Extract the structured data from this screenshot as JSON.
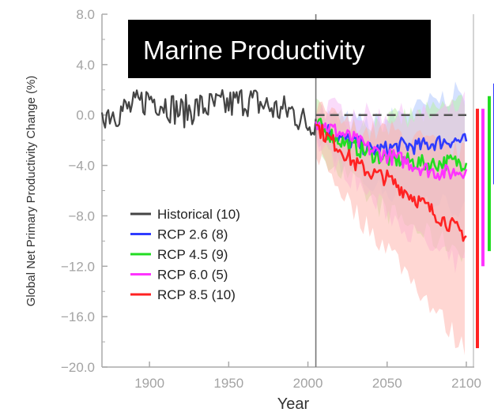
{
  "chart_data": {
    "type": "line",
    "title": "Marine Productivity",
    "xlabel": "Year",
    "ylabel": "Global Net Primary Productivity Change (%)",
    "xlim": [
      1870,
      2100
    ],
    "ylim": [
      -20,
      8
    ],
    "x_ticks": [
      "1900",
      "1950",
      "2000",
      "2050",
      "2100"
    ],
    "x_tick_values": [
      1900,
      1950,
      2000,
      2050,
      2100
    ],
    "y_ticks": [
      "8.0",
      "4.0",
      "0.0",
      "−4.0",
      "−8.0",
      "−12.0",
      "−16.0",
      "−20.0"
    ],
    "y_tick_values": [
      8,
      4,
      0,
      -4,
      -8,
      -12,
      -16,
      -20
    ],
    "divider_year": 2005,
    "zero_reference_dashed": true,
    "legend_position": "lower-left",
    "series": [
      {
        "name": "Historical (10)",
        "color": "#444444",
        "x": [
          1870,
          1880,
          1890,
          1900,
          1910,
          1920,
          1930,
          1940,
          1950,
          1960,
          1970,
          1980,
          1990,
          2000,
          2005
        ],
        "y": [
          0.2,
          0.3,
          0.6,
          1.4,
          0.9,
          0.2,
          0.6,
          0.7,
          0.8,
          1.2,
          0.9,
          0.4,
          0.3,
          -0.8,
          -0.3
        ]
      },
      {
        "name": "RCP 2.6 (8)",
        "color": "#2f3cff",
        "x": [
          2005,
          2010,
          2020,
          2030,
          2040,
          2050,
          2060,
          2070,
          2080,
          2090,
          2100
        ],
        "y": [
          -0.5,
          -1.0,
          -1.8,
          -2.2,
          -2.8,
          -2.7,
          -2.4,
          -2.5,
          -2.2,
          -2.0,
          -2.1
        ],
        "spread": [
          -5.5,
          2.5
        ]
      },
      {
        "name": "RCP 4.5 (9)",
        "color": "#22dd22",
        "x": [
          2005,
          2010,
          2020,
          2030,
          2040,
          2050,
          2060,
          2070,
          2080,
          2090,
          2100
        ],
        "y": [
          -0.5,
          -1.2,
          -2.0,
          -2.6,
          -3.1,
          -3.5,
          -3.6,
          -3.8,
          -3.9,
          -3.7,
          -3.8
        ],
        "spread": [
          -10.8,
          1.5
        ]
      },
      {
        "name": "RCP 6.0 (5)",
        "color": "#ff33ff",
        "x": [
          2005,
          2010,
          2020,
          2030,
          2040,
          2050,
          2060,
          2070,
          2080,
          2090,
          2100
        ],
        "y": [
          -0.5,
          -0.8,
          -1.4,
          -2.0,
          -2.8,
          -3.2,
          -3.6,
          -4.1,
          -4.5,
          -4.6,
          -4.3
        ],
        "spread": [
          -12.0,
          0.5
        ]
      },
      {
        "name": "RCP 8.5 (10)",
        "color": "#ff2222",
        "x": [
          2005,
          2010,
          2020,
          2030,
          2040,
          2050,
          2060,
          2070,
          2080,
          2090,
          2100
        ],
        "y": [
          -0.8,
          -1.5,
          -2.6,
          -3.9,
          -4.6,
          -5.0,
          -5.9,
          -6.8,
          -7.8,
          -8.7,
          -9.6
        ],
        "spread": [
          -18.5,
          0.5
        ]
      }
    ]
  }
}
